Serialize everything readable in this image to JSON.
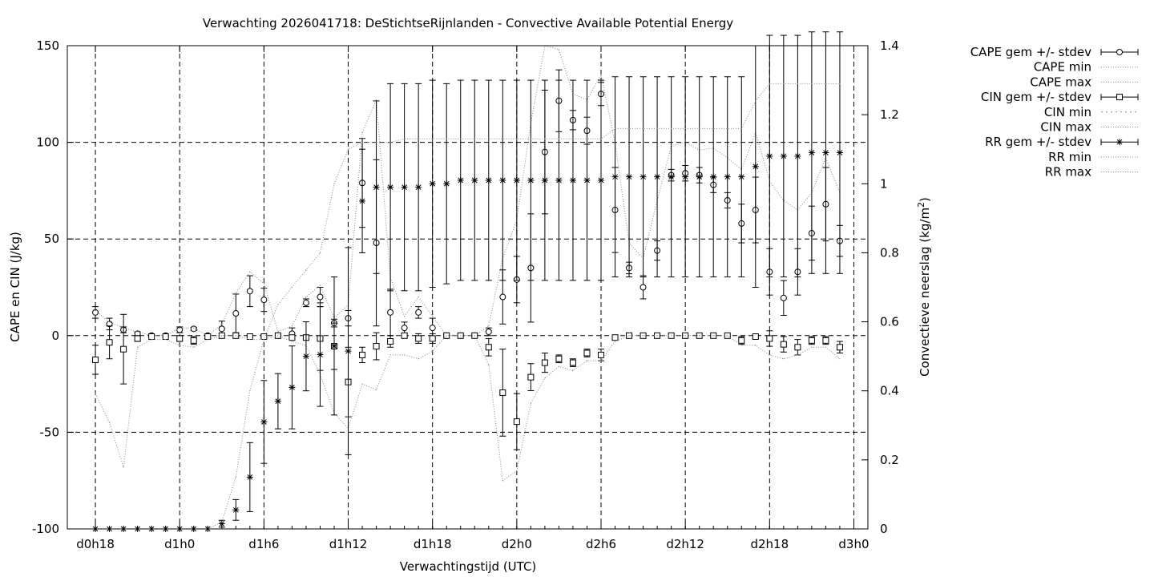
{
  "chart_data": {
    "type": "scatter",
    "title": "Verwachting 2026041718: DeStichtseRijnlanden - Convective Available Potential Energy",
    "xlabel": "Verwachtingstijd (UTC)",
    "ylabel": "CAPE en CIN (J/kg)",
    "y2label_main": "Convectieve neerslag (kg/m",
    "y2label_sup": "2",
    "y2label_end": ")",
    "x_start_hours": 18,
    "x_step_hours": 1,
    "xlim": [
      -2,
      55
    ],
    "ylim": [
      -100,
      150
    ],
    "y2lim": [
      0,
      1.4
    ],
    "yticks": [
      -100,
      -50,
      0,
      50,
      100,
      150
    ],
    "y2ticks": [
      0,
      0.2,
      0.4,
      0.6,
      0.8,
      1,
      1.2,
      1.4
    ],
    "y2tick_labels": [
      "0",
      "0.2",
      "0.4",
      "0.6",
      "0.8",
      "1",
      "1.2",
      "1.4"
    ],
    "xticks": [
      {
        "x": 0,
        "label": "d0h18"
      },
      {
        "x": 6,
        "label": "d1h0"
      },
      {
        "x": 12,
        "label": "d1h6"
      },
      {
        "x": 18,
        "label": "d1h12"
      },
      {
        "x": 24,
        "label": "d1h18"
      },
      {
        "x": 30,
        "label": "d2h0"
      },
      {
        "x": 36,
        "label": "d2h6"
      },
      {
        "x": 42,
        "label": "d2h12"
      },
      {
        "x": 48,
        "label": "d2h18"
      },
      {
        "x": 54,
        "label": "d3h0"
      }
    ],
    "grid": true,
    "legend_position": "outside-top-right",
    "legend": [
      "CAPE gem +/- stdev",
      "CAPE min",
      "CAPE max",
      "CIN gem +/- stdev",
      "CIN min",
      "CIN max",
      "RR gem +/- stdev",
      "RR min",
      "RR max"
    ],
    "series": [
      {
        "name": "CAPE gem +/- stdev",
        "axis": "y",
        "marker": "circle",
        "mean": [
          12,
          6,
          3,
          1,
          0,
          0,
          3,
          3.5,
          0,
          3.5,
          11.5,
          23,
          18.5,
          0,
          1,
          17,
          20,
          6.5,
          9,
          79,
          48,
          12,
          4,
          12,
          4,
          0,
          0,
          0,
          2,
          20,
          29,
          35,
          95,
          121.5,
          111.5,
          106,
          125,
          65,
          35,
          25,
          44,
          83,
          84,
          83,
          78,
          70,
          58,
          65,
          33,
          19.5,
          33,
          53,
          68,
          49
        ],
        "stdev": [
          3,
          3,
          1.5,
          1,
          0,
          0,
          1.5,
          0.8,
          0,
          4,
          10,
          8,
          6,
          0,
          3,
          2,
          5,
          2,
          4,
          23,
          43,
          12,
          3,
          3,
          5,
          0,
          0,
          0,
          2,
          14,
          12,
          28,
          32,
          16,
          5,
          7,
          6,
          22,
          3,
          6,
          5,
          3,
          4,
          4,
          4,
          4,
          10,
          17,
          12,
          9,
          12,
          14,
          19,
          8
        ]
      },
      {
        "name": "CAPE max",
        "axis": "y",
        "values": [
          13,
          7,
          4,
          2,
          0,
          0,
          4,
          4,
          0,
          6,
          22,
          33,
          27,
          2,
          5,
          20,
          26,
          9,
          16,
          105,
          122,
          30,
          10,
          20,
          10,
          0,
          0,
          0,
          5,
          40,
          60,
          110,
          150,
          148,
          125,
          122,
          135,
          100,
          48,
          40,
          70,
          98,
          100,
          96,
          97,
          92,
          86,
          105,
          80,
          70,
          65,
          74,
          92,
          74
        ]
      },
      {
        "name": "CIN gem +/- stdev",
        "axis": "y",
        "marker": "square",
        "mean": [
          -12.5,
          -3.5,
          -7,
          -1.5,
          -0.5,
          -0.5,
          -1.5,
          -2.5,
          -0.5,
          0,
          0,
          -0.5,
          -0.5,
          0,
          -1,
          -1,
          -1.5,
          -5.5,
          -24,
          -10,
          -5.5,
          -3,
          0,
          -1.5,
          -1.5,
          0,
          0,
          0,
          -6,
          -29.5,
          -44.5,
          -21.5,
          -14,
          -12,
          -14,
          -9,
          -10,
          -1,
          0,
          0,
          0,
          0,
          0,
          0,
          0,
          0,
          -2.5,
          -0.5,
          -1.5,
          -4.5,
          -6,
          -2.5,
          -2.5,
          -6
        ],
        "stdev": [
          7.5,
          8.5,
          18,
          1.5,
          1,
          0.5,
          1.5,
          2,
          1,
          0,
          0,
          0.5,
          0.5,
          0,
          1,
          1,
          16.5,
          12,
          18,
          4,
          7,
          3,
          0,
          2.5,
          2.5,
          0,
          0,
          0,
          4.5,
          22.5,
          14.5,
          7,
          5,
          2,
          2,
          2,
          3,
          1,
          0,
          0,
          0,
          0,
          0,
          0,
          0,
          0,
          2,
          1,
          4,
          4,
          4,
          2,
          2,
          3
        ]
      },
      {
        "name": "CIN min",
        "axis": "y",
        "values": [
          -30,
          -45,
          -68,
          -6,
          -2,
          -2,
          -5,
          -6,
          -2,
          0,
          0,
          -2,
          -2,
          0,
          -3,
          -5,
          -20,
          -40,
          -48,
          -25,
          -28,
          -10,
          -10,
          -12,
          -8,
          0,
          0,
          0,
          -15,
          -75,
          -70,
          -35,
          -22,
          -16,
          -18,
          -13,
          -13,
          -3,
          0,
          0,
          0,
          0,
          0,
          0,
          0,
          0,
          -5,
          -5,
          -10,
          -12,
          -10,
          -6,
          -6,
          -12
        ]
      },
      {
        "name": "RR gem +/- stdev",
        "axis": "y2",
        "marker": "star",
        "mean": [
          0,
          0,
          0,
          0,
          0,
          0,
          0,
          0,
          0,
          0.015,
          0.055,
          0.15,
          0.31,
          0.37,
          0.41,
          0.5,
          0.505,
          0.53,
          0.515,
          0.95,
          0.99,
          0.99,
          0.99,
          0.99,
          1.0,
          1.0,
          1.01,
          1.01,
          1.01,
          1.01,
          1.01,
          1.01,
          1.01,
          1.01,
          1.01,
          1.01,
          1.01,
          1.02,
          1.02,
          1.02,
          1.02,
          1.02,
          1.02,
          1.02,
          1.02,
          1.02,
          1.02,
          1.05,
          1.08,
          1.08,
          1.08,
          1.09,
          1.09,
          1.09
        ],
        "stdev": [
          0,
          0,
          0,
          0,
          0,
          0,
          0,
          0,
          0,
          0.01,
          0.03,
          0.1,
          0.12,
          0.08,
          0.12,
          0.1,
          0.15,
          0.2,
          0.3,
          0.15,
          0.25,
          0.3,
          0.3,
          0.3,
          0.3,
          0.29,
          0.29,
          0.29,
          0.29,
          0.29,
          0.29,
          0.29,
          0.29,
          0.29,
          0.29,
          0.29,
          0.29,
          0.29,
          0.29,
          0.29,
          0.29,
          0.29,
          0.29,
          0.29,
          0.29,
          0.29,
          0.29,
          0.35,
          0.35,
          0.35,
          0.35,
          0.35,
          0.35,
          0.35
        ]
      },
      {
        "name": "RR max",
        "axis": "y2",
        "values": [
          0,
          0,
          0,
          0,
          0,
          0,
          0,
          0,
          0,
          0.02,
          0.15,
          0.4,
          0.55,
          0.65,
          0.7,
          0.75,
          0.8,
          1.0,
          1.1,
          1.12,
          1.12,
          1.12,
          1.13,
          1.13,
          1.13,
          1.13,
          1.13,
          1.13,
          1.13,
          1.13,
          1.13,
          1.13,
          1.13,
          1.13,
          1.13,
          1.13,
          1.13,
          1.16,
          1.16,
          1.16,
          1.16,
          1.16,
          1.16,
          1.16,
          1.16,
          1.16,
          1.16,
          1.24,
          1.29,
          1.29,
          1.29,
          1.29,
          1.29,
          1.29
        ]
      }
    ]
  }
}
